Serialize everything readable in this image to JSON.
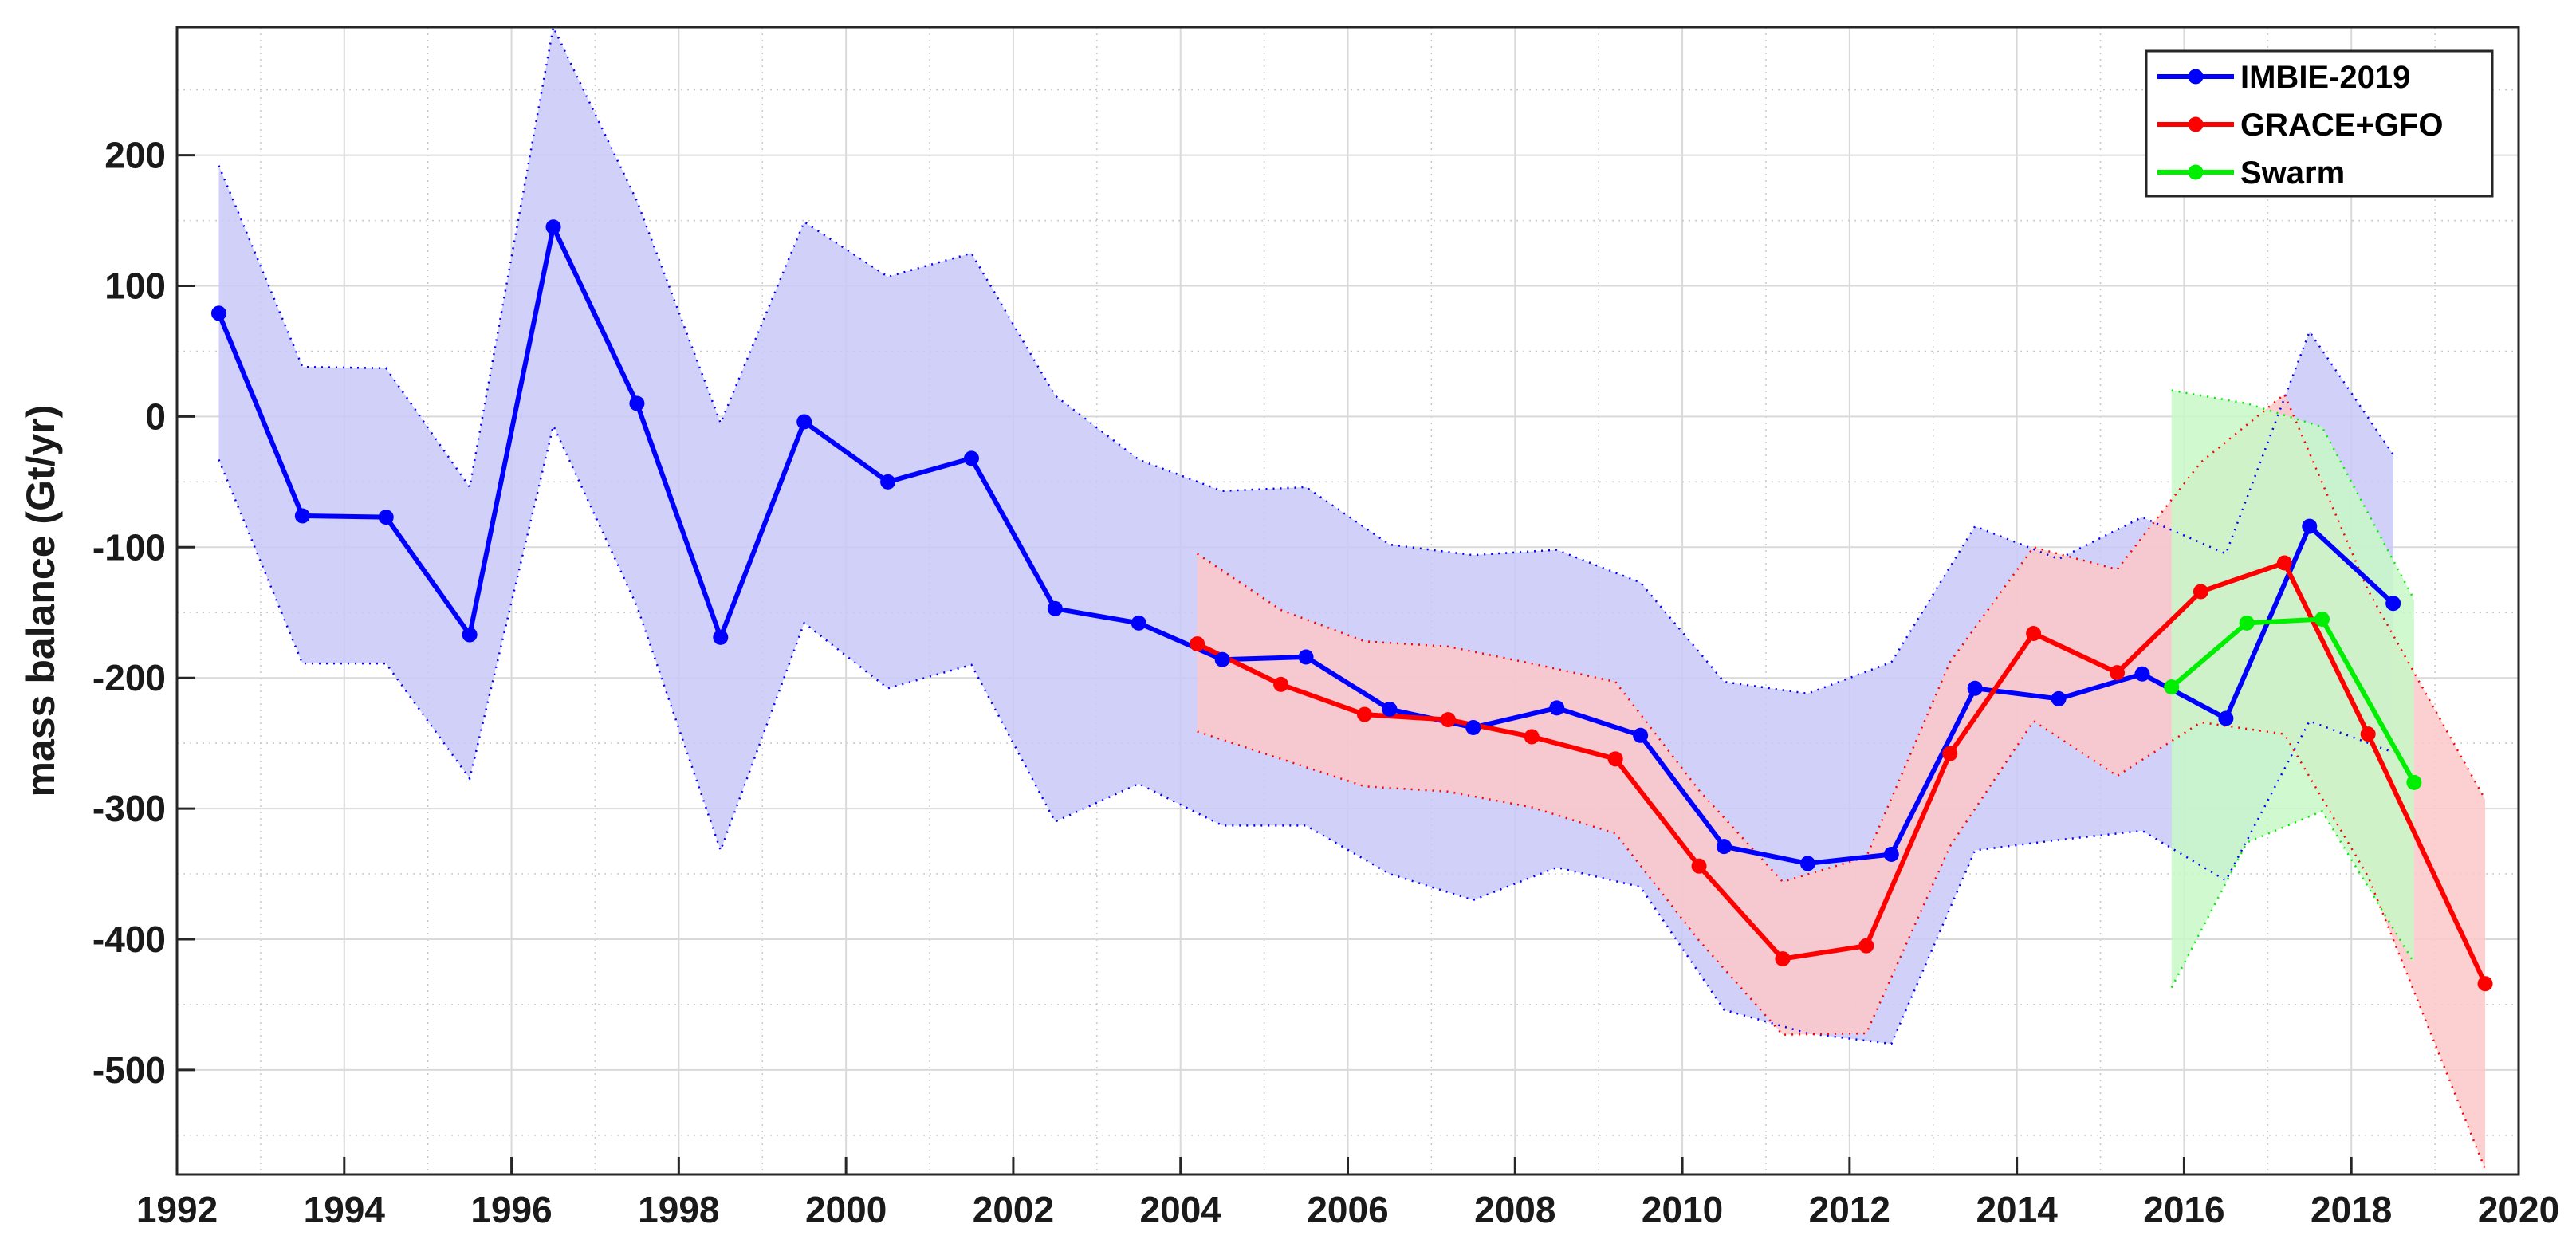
{
  "chart_data": {
    "type": "line",
    "title": "",
    "xlabel": "",
    "ylabel": "mass balance (Gt/yr)",
    "xlim": [
      1992,
      2020
    ],
    "ylim": [
      -580,
      298
    ],
    "grid": true,
    "legend_position": "top-right",
    "x_ticks": [
      "1992",
      "1994",
      "1996",
      "1998",
      "2000",
      "2002",
      "2004",
      "2006",
      "2008",
      "2010",
      "2012",
      "2014",
      "2016",
      "2018",
      "2020"
    ],
    "y_ticks": [
      "200",
      "100",
      "0",
      "-100",
      "-200",
      "-300",
      "-400",
      "-500"
    ],
    "series": [
      {
        "name": "IMBIE-2019",
        "color": "#0000ff",
        "band_color": "#c8c8f8",
        "x": [
          1992.5,
          1993.5,
          1994.5,
          1995.5,
          1996.5,
          1997.5,
          1998.5,
          1999.5,
          2000.5,
          2001.5,
          2002.5,
          2003.5,
          2004.5,
          2005.5,
          2006.5,
          2007.5,
          2008.5,
          2009.5,
          2010.5,
          2011.5,
          2012.5,
          2013.5,
          2014.5,
          2015.5,
          2016.5,
          2017.5,
          2018.5
        ],
        "y": [
          79,
          -76,
          -77,
          -167,
          145,
          10,
          -169,
          -4,
          -50,
          -32,
          -147,
          -158,
          -186,
          -184,
          -224,
          -238,
          -223,
          -244,
          -329,
          -342,
          -335,
          -208,
          -216,
          -197,
          -231,
          -84,
          -143
        ],
        "upper": [
          192,
          38,
          37,
          -54,
          298,
          165,
          -5,
          149,
          107,
          125,
          16,
          -33,
          -57,
          -54,
          -98,
          -106,
          -102,
          -127,
          -203,
          -212,
          -188,
          -84,
          -109,
          -77,
          -105,
          65,
          -29
        ],
        "lower": [
          -33,
          -189,
          -189,
          -277,
          -7,
          -145,
          -332,
          -158,
          -208,
          -190,
          -310,
          -281,
          -313,
          -313,
          -350,
          -370,
          -345,
          -360,
          -454,
          -472,
          -480,
          -332,
          -324,
          -317,
          -355,
          -233,
          -257
        ]
      },
      {
        "name": "GRACE+GFO",
        "color": "#ff0000",
        "band_color": "#fcc8c8",
        "x": [
          2004.2,
          2005.2,
          2006.2,
          2007.2,
          2008.2,
          2009.2,
          2010.2,
          2011.2,
          2012.2,
          2013.2,
          2014.2,
          2015.2,
          2016.2,
          2017.2,
          2018.2,
          2019.6
        ],
        "y": [
          -174,
          -205,
          -228,
          -232,
          -245,
          -262,
          -344,
          -415,
          -405,
          -258,
          -166,
          -196,
          -134,
          -112,
          -243,
          -434
        ],
        "upper": [
          -105,
          -148,
          -172,
          -176,
          -189,
          -203,
          -286,
          -356,
          -337,
          -188,
          -100,
          -117,
          -35,
          17,
          -133,
          -293
        ],
        "lower": [
          -241,
          -262,
          -283,
          -287,
          -299,
          -319,
          -401,
          -473,
          -472,
          -329,
          -233,
          -275,
          -234,
          -243,
          -352,
          -576
        ]
      },
      {
        "name": "Swarm",
        "color": "#00ee00",
        "band_color": "#c8f8c8",
        "x": [
          2015.85,
          2016.75,
          2017.65,
          2018.75
        ],
        "y": [
          -207,
          -158,
          -155,
          -280
        ],
        "upper": [
          20,
          10,
          -8,
          -140
        ],
        "lower": [
          -437,
          -326,
          -302,
          -418
        ]
      }
    ]
  }
}
